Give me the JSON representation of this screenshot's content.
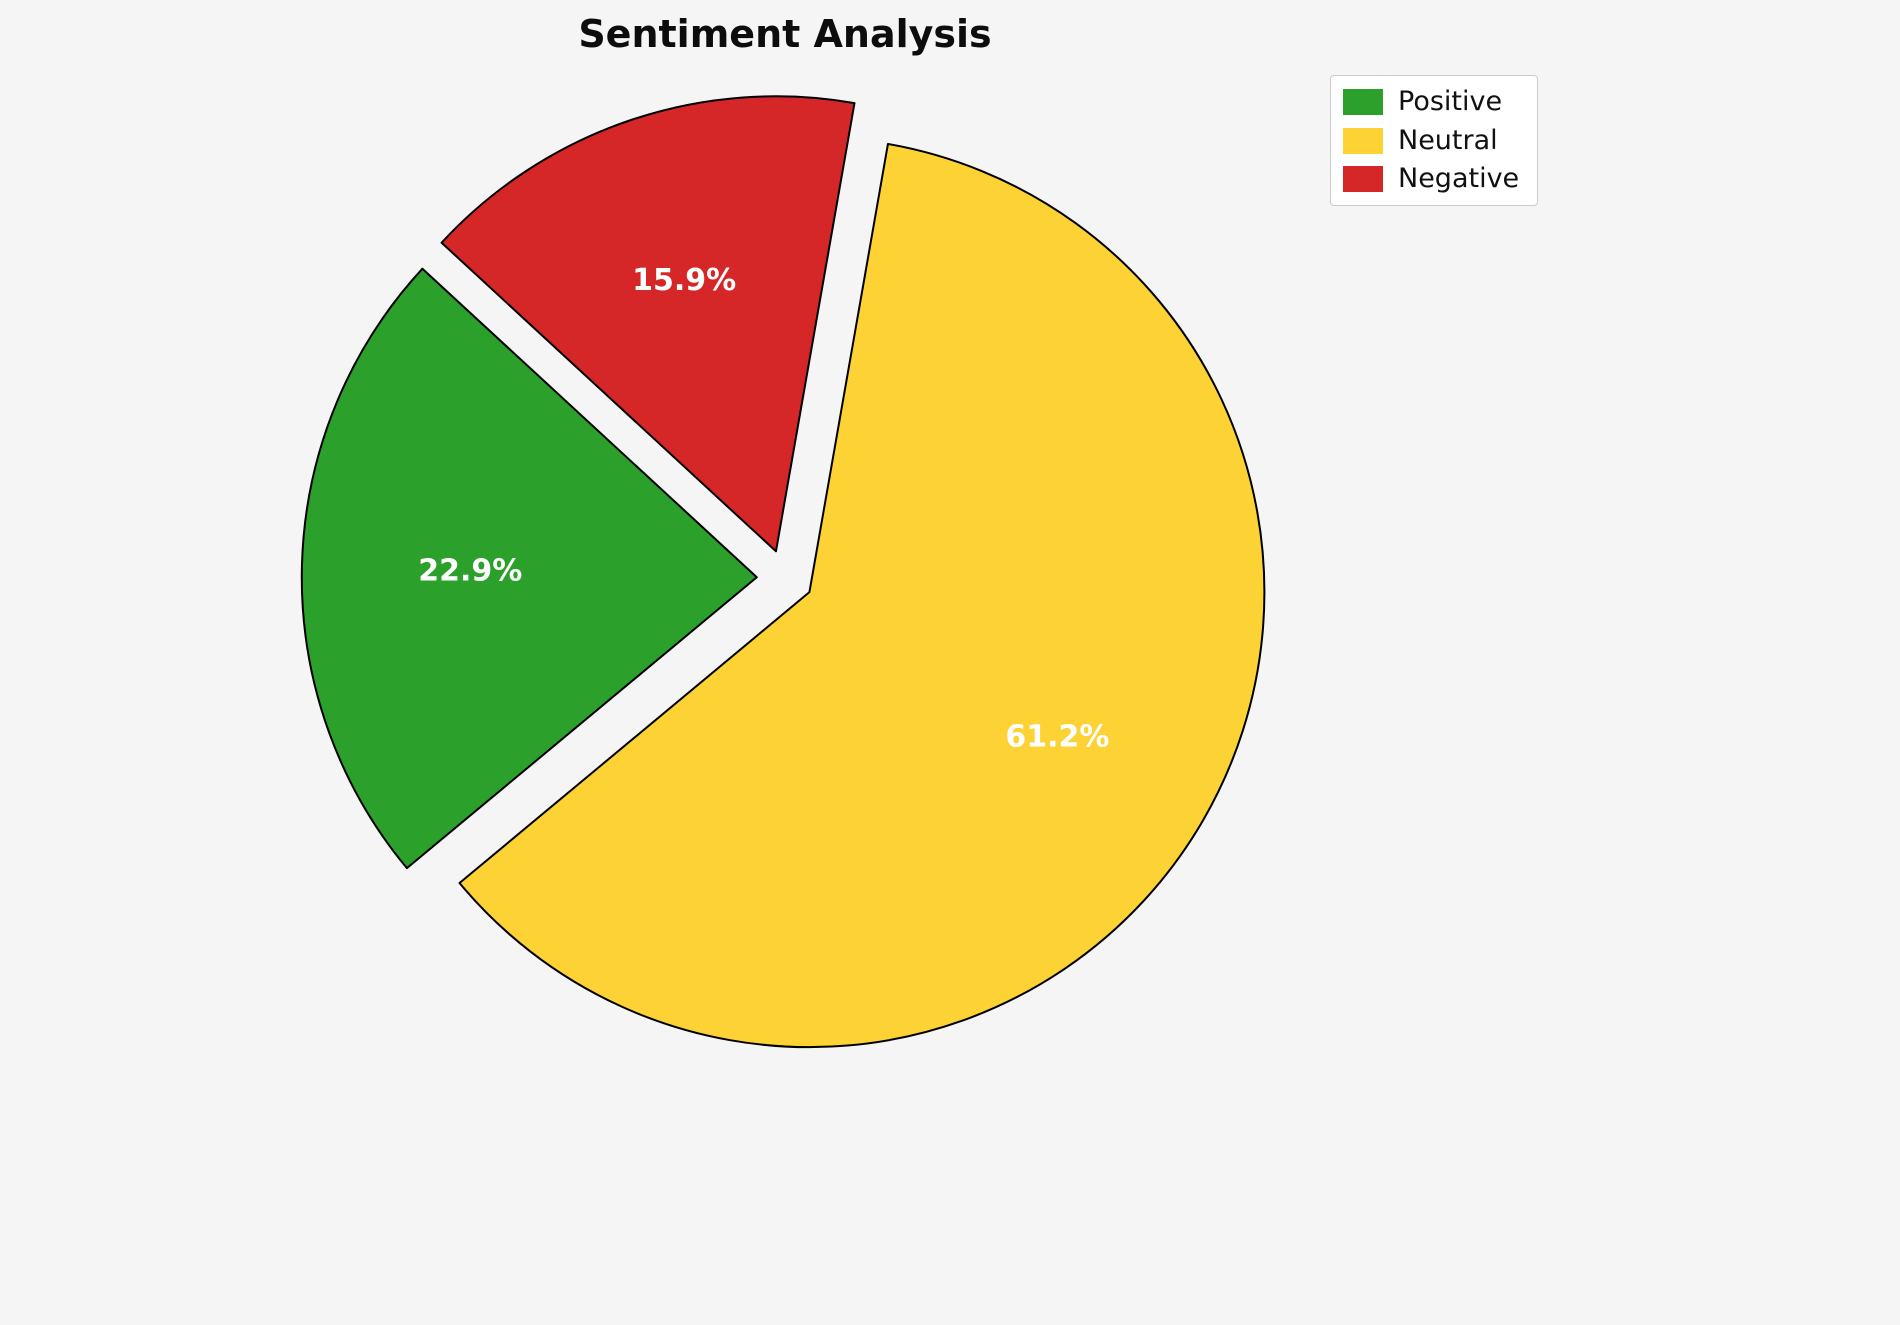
{
  "title": "Sentiment Analysis",
  "chart_data": {
    "type": "pie",
    "title": "Sentiment Analysis",
    "labels": [
      "Positive",
      "Neutral",
      "Negative"
    ],
    "values": [
      22.9,
      61.2,
      15.9
    ],
    "percent_labels": [
      "22.9%",
      "61.2%",
      "15.9%"
    ],
    "colors": [
      "#2ba02b",
      "#fdd235",
      "#d62728"
    ],
    "start_angle_deg": 137.3,
    "direction": "counterclockwise",
    "explode": 0.062,
    "edge_color": "#000000",
    "label_color": "#ffffff",
    "background": "#f5f5f5",
    "legend_position": "upper right",
    "legend_entries": [
      "Positive",
      "Neutral",
      "Negative"
    ]
  },
  "legend": {
    "items": [
      {
        "label": "Positive",
        "color": "#2ba02b"
      },
      {
        "label": "Neutral",
        "color": "#fdd235"
      },
      {
        "label": "Negative",
        "color": "#d62728"
      }
    ]
  }
}
